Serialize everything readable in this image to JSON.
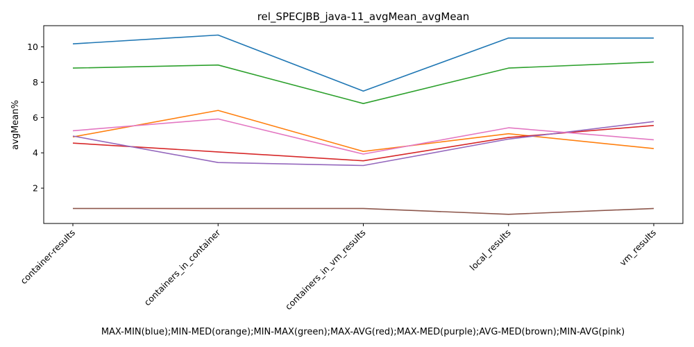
{
  "chart_data": {
    "type": "line",
    "title": "rel_SPECJBB_java-11_avgMean_avgMean",
    "ylabel": "avgMean%",
    "xlabel": "MAX-MIN(blue);MIN-MED(orange);MIN-MAX(green);MAX-AVG(red);MAX-MED(purple);AVG-MED(brown);MIN-AVG(pink)",
    "categories": [
      "container-results",
      "containers_in_container",
      "containers_in_vm_results",
      "local_results",
      "vm_results"
    ],
    "ylim": [
      0.0,
      11.2
    ],
    "yticks": [
      2,
      4,
      6,
      8,
      10
    ],
    "grid": false,
    "legend": "none",
    "series": [
      {
        "color": "#1f77b4",
        "values": [
          10.17,
          10.67,
          7.5,
          10.5,
          10.5
        ]
      },
      {
        "color": "#ff7f0e",
        "values": [
          4.9,
          6.4,
          4.08,
          5.08,
          4.24
        ]
      },
      {
        "color": "#2ca02c",
        "values": [
          8.8,
          8.97,
          6.79,
          8.8,
          9.14
        ]
      },
      {
        "color": "#d62728",
        "values": [
          4.55,
          4.05,
          3.55,
          4.87,
          5.55
        ]
      },
      {
        "color": "#9467bd",
        "values": [
          4.95,
          3.45,
          3.28,
          4.78,
          5.77
        ]
      },
      {
        "color": "#8c564b",
        "values": [
          0.85,
          0.85,
          0.85,
          0.52,
          0.85
        ]
      },
      {
        "color": "#e377c2",
        "values": [
          5.25,
          5.92,
          3.93,
          5.42,
          4.74
        ]
      }
    ]
  }
}
